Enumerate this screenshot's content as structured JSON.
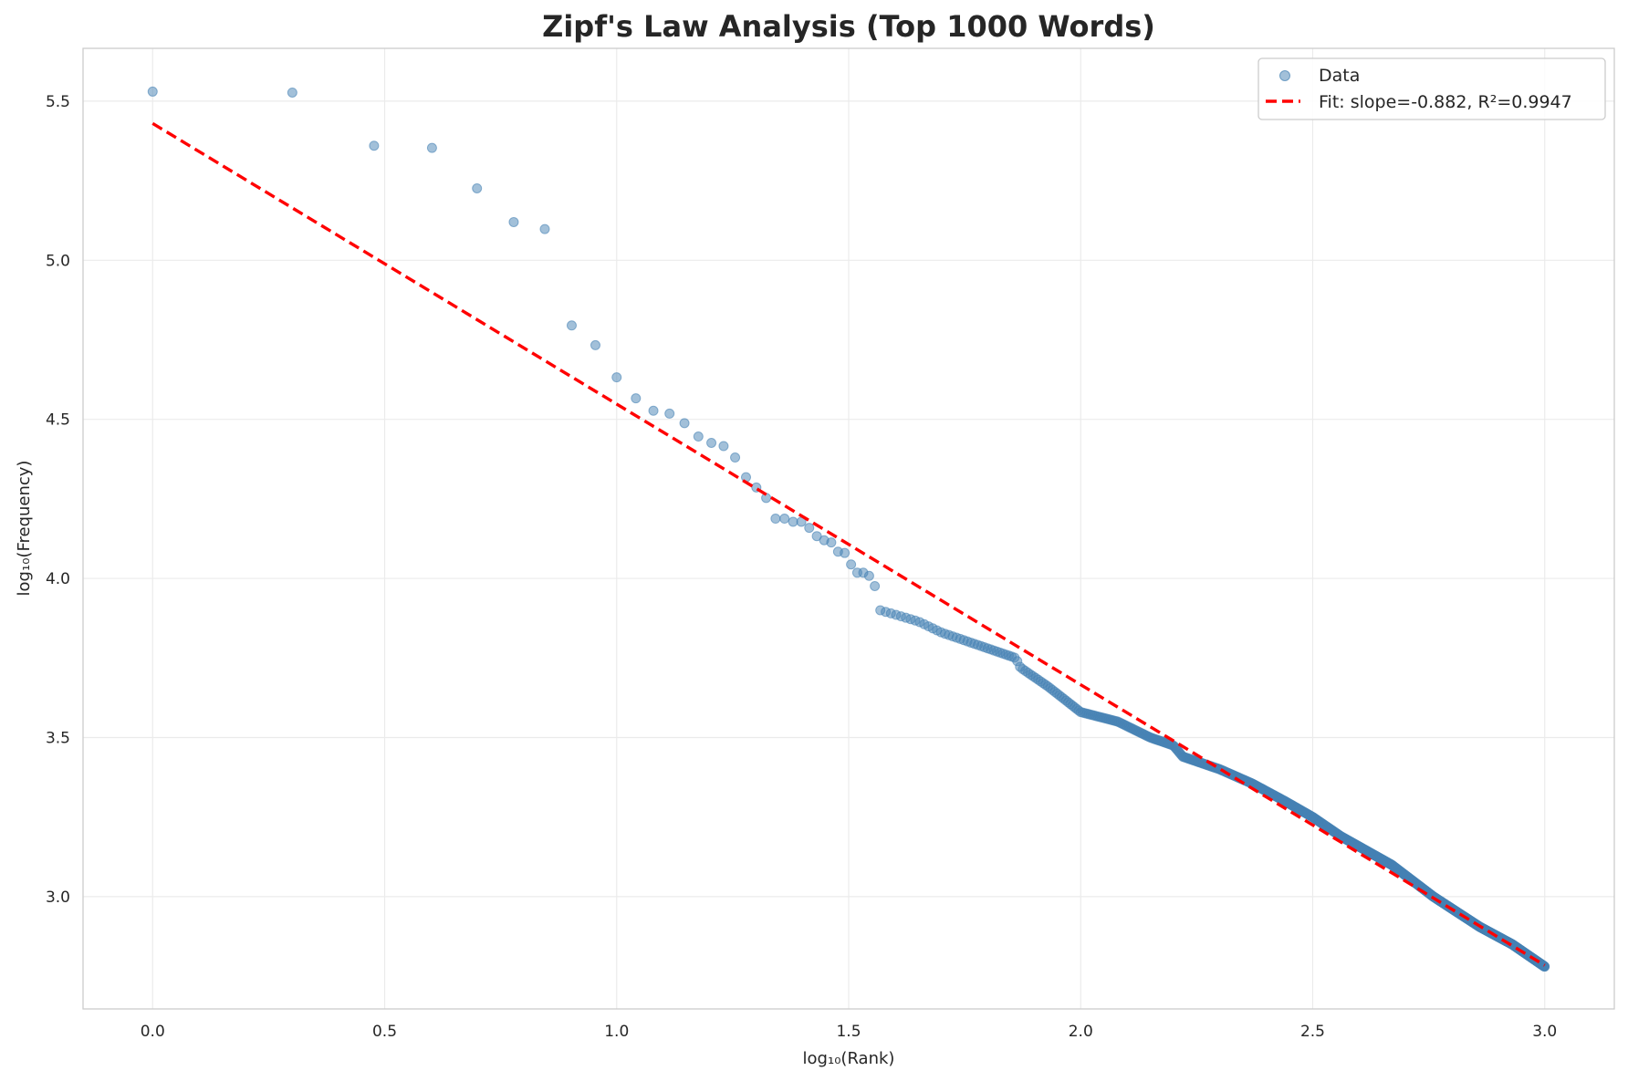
{
  "chart_data": {
    "type": "scatter",
    "title": "Zipf's Law Analysis (Top 1000 Words)",
    "xlabel": "log₁₀(Rank)",
    "ylabel": "log₁₀(Frequency)",
    "xlim": [
      -0.15,
      3.15
    ],
    "ylim": [
      2.647,
      5.666
    ],
    "xticks": [
      "0.0",
      "0.5",
      "1.0",
      "1.5",
      "2.0",
      "2.5",
      "3.0"
    ],
    "yticks": [
      "3.0",
      "3.5",
      "4.0",
      "4.5",
      "5.0",
      "5.5"
    ],
    "grid": true,
    "legend_position": "top-right",
    "series": [
      {
        "name": "Data",
        "kind": "scatter",
        "color": "#4682b4",
        "head_log_frequency_by_rank": [
          5.53,
          5.527,
          5.36,
          5.353,
          5.226,
          5.12,
          5.098,
          4.795,
          4.733,
          4.632,
          4.566,
          4.527,
          4.518,
          4.488,
          4.446,
          4.426,
          4.416,
          4.38,
          4.318,
          4.286,
          4.253,
          4.188,
          4.188,
          4.178,
          4.178,
          4.159,
          4.133,
          4.12,
          4.113,
          4.084,
          4.08,
          4.044,
          4.018,
          4.018,
          4.008,
          3.976,
          3.9
        ],
        "tail_points": [
          [
            1.58,
            3.895
          ],
          [
            1.65,
            3.865
          ],
          [
            1.7,
            3.83
          ],
          [
            1.8,
            3.78
          ],
          [
            1.86,
            3.75
          ],
          [
            1.87,
            3.72
          ],
          [
            1.93,
            3.66
          ],
          [
            2.0,
            3.58
          ],
          [
            2.08,
            3.55
          ],
          [
            2.15,
            3.5
          ],
          [
            2.2,
            3.475
          ],
          [
            2.22,
            3.44
          ],
          [
            2.3,
            3.4
          ],
          [
            2.37,
            3.355
          ],
          [
            2.44,
            3.3
          ],
          [
            2.5,
            3.25
          ],
          [
            2.56,
            3.19
          ],
          [
            2.67,
            3.1
          ],
          [
            2.76,
            3.0
          ],
          [
            2.86,
            2.905
          ],
          [
            2.93,
            2.85
          ],
          [
            3.0,
            2.78
          ]
        ]
      },
      {
        "name": "Fit: slope=-0.882, R²=0.9947",
        "kind": "line",
        "color": "#ff0000",
        "slope": -0.882,
        "intercept": 5.43,
        "r_squared": 0.9947,
        "x_range": [
          0,
          3
        ]
      }
    ]
  }
}
